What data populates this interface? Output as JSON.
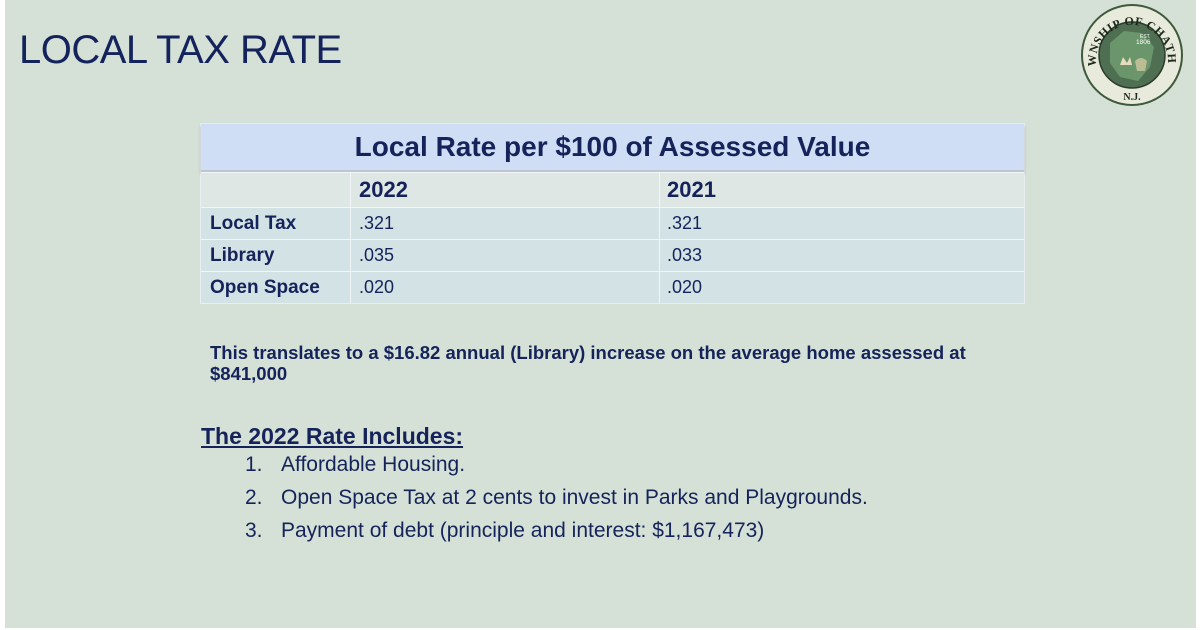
{
  "slide": {
    "title": "LOCAL TAX RATE",
    "background_color": "#d5e1d6",
    "text_color": "#15235a"
  },
  "seal": {
    "text_top": "TOWNSHIP OF CHATHAM",
    "est": "EST.",
    "year": "1806",
    "state": "N.J."
  },
  "table": {
    "title": "Local Rate per $100 of Assessed Value",
    "columns": [
      "",
      "2022",
      "2021"
    ],
    "rows": [
      {
        "label": "Local Tax",
        "v2022": ".321",
        "v2021": ".321"
      },
      {
        "label": "Library",
        "v2022": ".035",
        "v2021": ".033"
      },
      {
        "label": "Open Space",
        "v2022": ".020",
        "v2021": ".020"
      }
    ]
  },
  "note": "This translates to a $16.82 annual (Library) increase on the average home assessed at $841,000",
  "includes": {
    "heading": "The 2022 Rate Includes:",
    "items": [
      {
        "num": "1.",
        "text": "Affordable Housing."
      },
      {
        "num": "2.",
        "text": "Open Space Tax at 2 cents to invest in Parks and Playgrounds."
      },
      {
        "num": "3.",
        "text": "Payment of debt (principle and interest: $1,167,473)"
      }
    ]
  }
}
